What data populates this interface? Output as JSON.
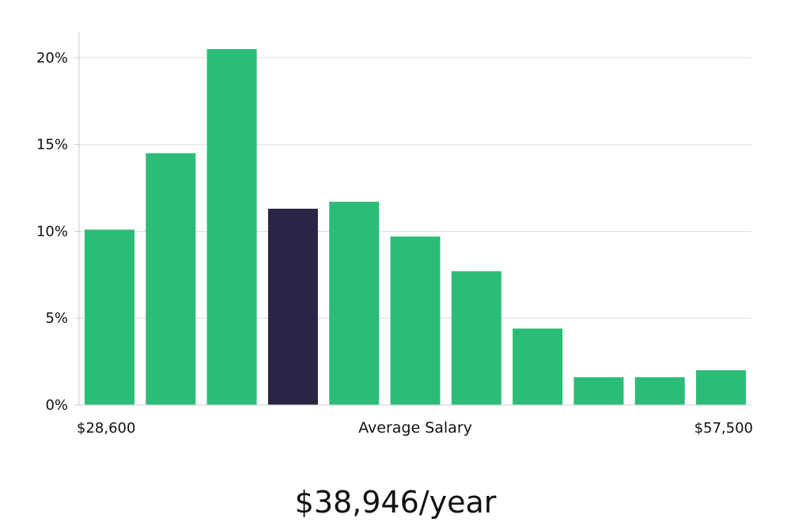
{
  "chart_data": {
    "type": "bar",
    "title": "",
    "xlabel": "Average Salary",
    "ylabel": "",
    "x_range_labels": [
      "$28,600",
      "$57,500"
    ],
    "yticks": [
      "0%",
      "5%",
      "10%",
      "15%",
      "20%"
    ],
    "ylim": [
      0,
      21.5
    ],
    "values": [
      10.1,
      14.5,
      20.5,
      11.3,
      11.7,
      9.7,
      7.7,
      4.4,
      1.6,
      1.6,
      2.0
    ],
    "highlight_index": 3,
    "grid": true,
    "colors": {
      "bar": "#2bbd77",
      "highlight": "#2a2545",
      "grid": "#dddddd",
      "axis": "#cccccc",
      "text": "#111111"
    }
  },
  "summary": {
    "salary": "$38,946/year"
  }
}
